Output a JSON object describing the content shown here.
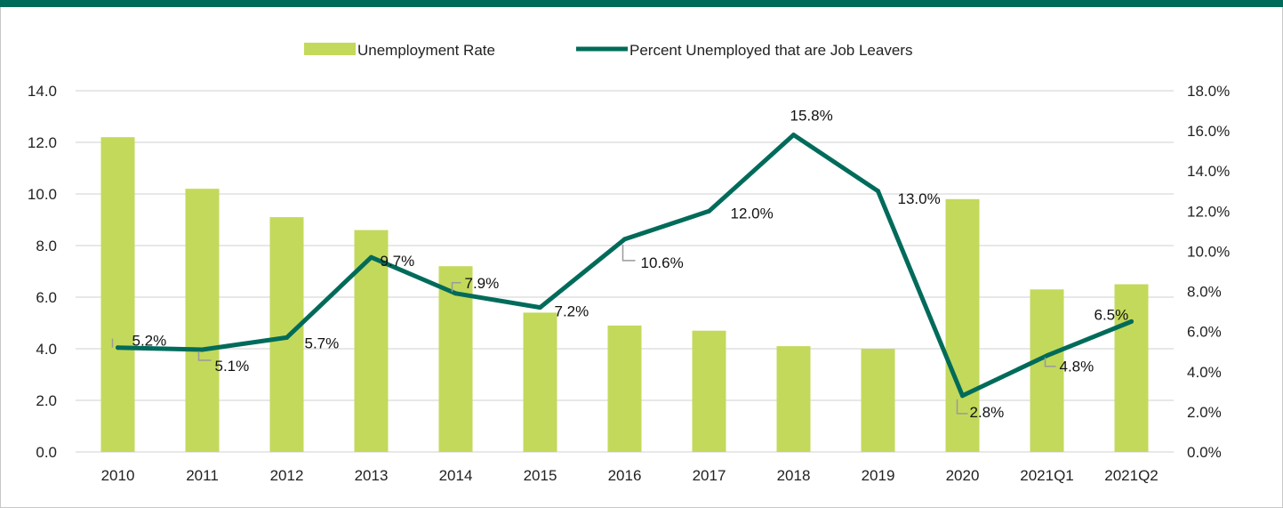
{
  "chart_data": {
    "type": "bar+line",
    "title": "",
    "categories": [
      "2010",
      "2011",
      "2012",
      "2013",
      "2014",
      "2015",
      "2016",
      "2017",
      "2018",
      "2019",
      "2020",
      "2021Q1",
      "2021Q2"
    ],
    "series": [
      {
        "name": "Unemployment Rate",
        "type": "bar",
        "axis": "left",
        "color": "#c3d95b",
        "values": [
          12.2,
          10.2,
          9.1,
          8.6,
          7.2,
          5.4,
          4.9,
          4.7,
          4.1,
          4.0,
          9.8,
          6.3,
          6.5
        ]
      },
      {
        "name": "Percent Unemployed that are Job Leavers",
        "type": "line",
        "axis": "right",
        "color": "#006b5a",
        "values": [
          5.2,
          5.1,
          5.7,
          9.7,
          7.9,
          7.2,
          10.6,
          12.0,
          15.8,
          13.0,
          2.8,
          4.8,
          6.5
        ],
        "data_labels": [
          "5.2%",
          "5.1%",
          "5.7%",
          "9.7%",
          "7.9%",
          "7.2%",
          "10.6%",
          "12.0%",
          "15.8%",
          "13.0%",
          "2.8%",
          "4.8%",
          "6.5%"
        ]
      }
    ],
    "left_axis": {
      "min": 0,
      "max": 14,
      "step": 2,
      "tick_labels": [
        "0.0",
        "2.0",
        "4.0",
        "6.0",
        "8.0",
        "10.0",
        "12.0",
        "14.0"
      ]
    },
    "right_axis": {
      "min": 0,
      "max": 18,
      "step": 2,
      "tick_labels": [
        "0.0%",
        "2.0%",
        "4.0%",
        "6.0%",
        "8.0%",
        "10.0%",
        "12.0%",
        "14.0%",
        "16.0%",
        "18.0%"
      ]
    },
    "grid": true,
    "legend_position": "top"
  },
  "colors": {
    "accent_bar": "#006b5a",
    "grid": "#d9d9d9"
  }
}
